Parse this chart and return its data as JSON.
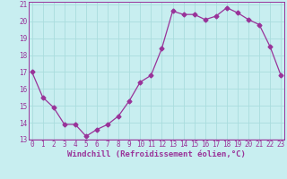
{
  "x": [
    0,
    1,
    2,
    3,
    4,
    5,
    6,
    7,
    8,
    9,
    10,
    11,
    12,
    13,
    14,
    15,
    16,
    17,
    18,
    19,
    20,
    21,
    22,
    23
  ],
  "y": [
    17.0,
    15.5,
    14.9,
    13.9,
    13.9,
    13.2,
    13.6,
    13.9,
    14.4,
    15.3,
    16.4,
    16.8,
    18.4,
    20.6,
    20.4,
    20.4,
    20.1,
    20.3,
    20.8,
    20.5,
    20.1,
    19.8,
    18.5,
    16.8
  ],
  "line_color": "#993399",
  "marker": "D",
  "marker_size": 2.5,
  "bg_color": "#c8eef0",
  "grid_color": "#aadddd",
  "xlabel": "Windchill (Refroidissement éolien,°C)",
  "xlabel_fontsize": 6.5,
  "tick_fontsize": 5.5,
  "ylim": [
    13,
    21
  ],
  "xlim": [
    0,
    23
  ],
  "yticks": [
    13,
    14,
    15,
    16,
    17,
    18,
    19,
    20,
    21
  ],
  "xticks": [
    0,
    1,
    2,
    3,
    4,
    5,
    6,
    7,
    8,
    9,
    10,
    11,
    12,
    13,
    14,
    15,
    16,
    17,
    18,
    19,
    20,
    21,
    22,
    23
  ]
}
